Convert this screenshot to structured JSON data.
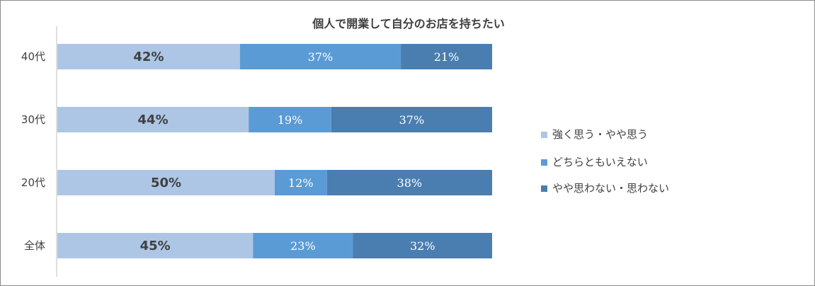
{
  "chart_data": {
    "type": "bar",
    "orientation": "horizontal",
    "stacked": "percent",
    "title": "個人で開業して自分のお店を持ちたい",
    "categories": [
      "40代",
      "30代",
      "20代",
      "全体"
    ],
    "series": [
      {
        "name": "強く思う・やや思う",
        "values": [
          42,
          44,
          50,
          45
        ],
        "labels": [
          "42%",
          "44%",
          "50%",
          "45%"
        ],
        "color": "#adc6e5"
      },
      {
        "name": "どちらともいえない",
        "values": [
          37,
          19,
          12,
          23
        ],
        "labels": [
          "37%",
          "19%",
          "12%",
          "23%"
        ],
        "color": "#5b9bd5"
      },
      {
        "name": "やや思わない・思わない",
        "values": [
          21,
          37,
          38,
          32
        ],
        "labels": [
          "21%",
          "37%",
          "38%",
          "32%"
        ],
        "color": "#4a7eb0"
      }
    ],
    "xlim": [
      0,
      100
    ],
    "grid": false,
    "legend_position": "right"
  }
}
